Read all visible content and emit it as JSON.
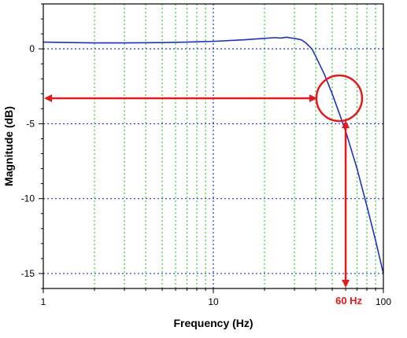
{
  "chart_data": {
    "type": "line",
    "title": "",
    "xlabel": "Frequency (Hz)",
    "ylabel": "Magnitude (dB)",
    "x_scale": "log",
    "xlim": [
      1,
      100
    ],
    "ylim": [
      -16,
      3
    ],
    "x_ticks": [
      {
        "value": 1,
        "label": "1"
      },
      {
        "value": 10,
        "label": "10"
      },
      {
        "value": 100,
        "label": "100"
      }
    ],
    "y_ticks": [
      {
        "value": 0,
        "label": "0"
      },
      {
        "value": -5,
        "label": "-5"
      },
      {
        "value": -10,
        "label": "-10"
      },
      {
        "value": -15,
        "label": "-15"
      }
    ],
    "grid": true,
    "series": [
      {
        "name": "",
        "color": "#1f2fbf",
        "x": [
          1,
          1.5,
          2,
          3,
          5,
          7,
          10,
          15,
          20,
          23,
          25,
          27,
          28,
          30,
          33,
          35,
          38,
          40,
          45,
          50,
          55,
          60,
          70,
          80,
          90,
          100
        ],
        "y": [
          0.45,
          0.42,
          0.4,
          0.4,
          0.42,
          0.45,
          0.5,
          0.6,
          0.7,
          0.75,
          0.72,
          0.78,
          0.74,
          0.7,
          0.6,
          0.4,
          0.0,
          -0.5,
          -1.7,
          -3.0,
          -4.3,
          -5.5,
          -8.0,
          -10.5,
          -12.8,
          -15.0
        ]
      }
    ],
    "annotations": {
      "color": "#e41a1c",
      "cutoff_label": "60 Hz",
      "cutoff_frequency": 60,
      "level_db": -3.3,
      "circle_center": {
        "x": 55,
        "y": -3.3
      }
    }
  }
}
